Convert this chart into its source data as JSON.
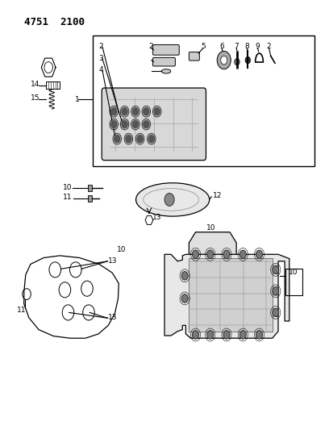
{
  "title_text": "4751  2100",
  "bg_color": "#ffffff",
  "line_color": "#000000",
  "fig_width": 4.08,
  "fig_height": 5.33,
  "dpi": 100
}
